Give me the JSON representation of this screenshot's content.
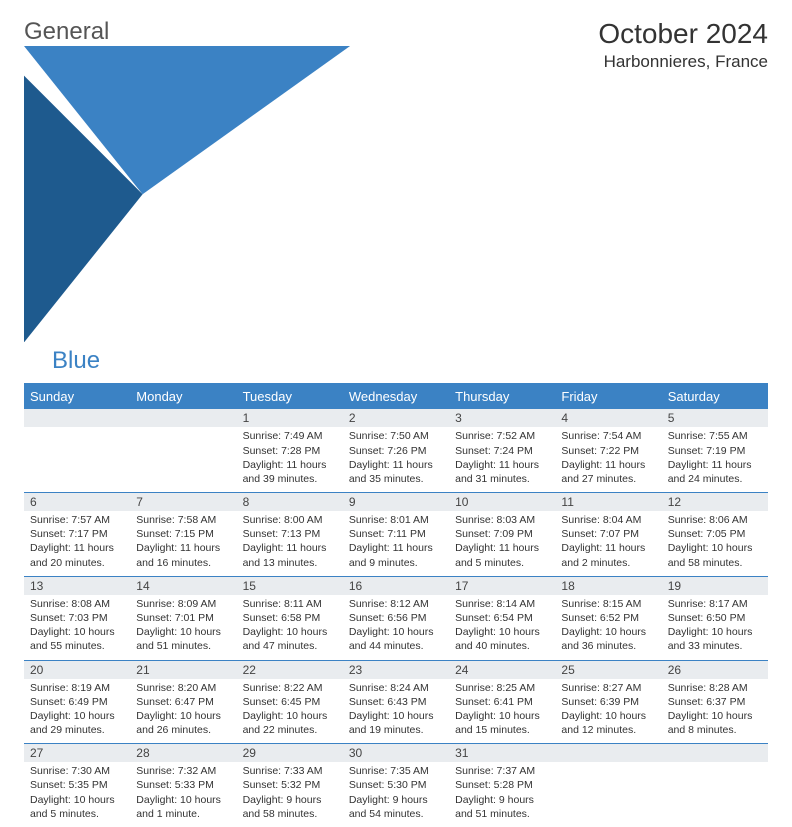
{
  "logo": {
    "text1": "General",
    "text2": "Blue"
  },
  "title": "October 2024",
  "location": "Harbonnieres, France",
  "weekdays": [
    "Sunday",
    "Monday",
    "Tuesday",
    "Wednesday",
    "Thursday",
    "Friday",
    "Saturday"
  ],
  "colors": {
    "accent": "#3b82c4",
    "header_bg": "#3b82c4",
    "header_text": "#ffffff",
    "daynum_bg": "#e9ecef",
    "text": "#333333",
    "background": "#ffffff"
  },
  "weeks": [
    [
      null,
      null,
      {
        "n": "1",
        "sr": "Sunrise: 7:49 AM",
        "ss": "Sunset: 7:28 PM",
        "dl": "Daylight: 11 hours and 39 minutes."
      },
      {
        "n": "2",
        "sr": "Sunrise: 7:50 AM",
        "ss": "Sunset: 7:26 PM",
        "dl": "Daylight: 11 hours and 35 minutes."
      },
      {
        "n": "3",
        "sr": "Sunrise: 7:52 AM",
        "ss": "Sunset: 7:24 PM",
        "dl": "Daylight: 11 hours and 31 minutes."
      },
      {
        "n": "4",
        "sr": "Sunrise: 7:54 AM",
        "ss": "Sunset: 7:22 PM",
        "dl": "Daylight: 11 hours and 27 minutes."
      },
      {
        "n": "5",
        "sr": "Sunrise: 7:55 AM",
        "ss": "Sunset: 7:19 PM",
        "dl": "Daylight: 11 hours and 24 minutes."
      }
    ],
    [
      {
        "n": "6",
        "sr": "Sunrise: 7:57 AM",
        "ss": "Sunset: 7:17 PM",
        "dl": "Daylight: 11 hours and 20 minutes."
      },
      {
        "n": "7",
        "sr": "Sunrise: 7:58 AM",
        "ss": "Sunset: 7:15 PM",
        "dl": "Daylight: 11 hours and 16 minutes."
      },
      {
        "n": "8",
        "sr": "Sunrise: 8:00 AM",
        "ss": "Sunset: 7:13 PM",
        "dl": "Daylight: 11 hours and 13 minutes."
      },
      {
        "n": "9",
        "sr": "Sunrise: 8:01 AM",
        "ss": "Sunset: 7:11 PM",
        "dl": "Daylight: 11 hours and 9 minutes."
      },
      {
        "n": "10",
        "sr": "Sunrise: 8:03 AM",
        "ss": "Sunset: 7:09 PM",
        "dl": "Daylight: 11 hours and 5 minutes."
      },
      {
        "n": "11",
        "sr": "Sunrise: 8:04 AM",
        "ss": "Sunset: 7:07 PM",
        "dl": "Daylight: 11 hours and 2 minutes."
      },
      {
        "n": "12",
        "sr": "Sunrise: 8:06 AM",
        "ss": "Sunset: 7:05 PM",
        "dl": "Daylight: 10 hours and 58 minutes."
      }
    ],
    [
      {
        "n": "13",
        "sr": "Sunrise: 8:08 AM",
        "ss": "Sunset: 7:03 PM",
        "dl": "Daylight: 10 hours and 55 minutes."
      },
      {
        "n": "14",
        "sr": "Sunrise: 8:09 AM",
        "ss": "Sunset: 7:01 PM",
        "dl": "Daylight: 10 hours and 51 minutes."
      },
      {
        "n": "15",
        "sr": "Sunrise: 8:11 AM",
        "ss": "Sunset: 6:58 PM",
        "dl": "Daylight: 10 hours and 47 minutes."
      },
      {
        "n": "16",
        "sr": "Sunrise: 8:12 AM",
        "ss": "Sunset: 6:56 PM",
        "dl": "Daylight: 10 hours and 44 minutes."
      },
      {
        "n": "17",
        "sr": "Sunrise: 8:14 AM",
        "ss": "Sunset: 6:54 PM",
        "dl": "Daylight: 10 hours and 40 minutes."
      },
      {
        "n": "18",
        "sr": "Sunrise: 8:15 AM",
        "ss": "Sunset: 6:52 PM",
        "dl": "Daylight: 10 hours and 36 minutes."
      },
      {
        "n": "19",
        "sr": "Sunrise: 8:17 AM",
        "ss": "Sunset: 6:50 PM",
        "dl": "Daylight: 10 hours and 33 minutes."
      }
    ],
    [
      {
        "n": "20",
        "sr": "Sunrise: 8:19 AM",
        "ss": "Sunset: 6:49 PM",
        "dl": "Daylight: 10 hours and 29 minutes."
      },
      {
        "n": "21",
        "sr": "Sunrise: 8:20 AM",
        "ss": "Sunset: 6:47 PM",
        "dl": "Daylight: 10 hours and 26 minutes."
      },
      {
        "n": "22",
        "sr": "Sunrise: 8:22 AM",
        "ss": "Sunset: 6:45 PM",
        "dl": "Daylight: 10 hours and 22 minutes."
      },
      {
        "n": "23",
        "sr": "Sunrise: 8:24 AM",
        "ss": "Sunset: 6:43 PM",
        "dl": "Daylight: 10 hours and 19 minutes."
      },
      {
        "n": "24",
        "sr": "Sunrise: 8:25 AM",
        "ss": "Sunset: 6:41 PM",
        "dl": "Daylight: 10 hours and 15 minutes."
      },
      {
        "n": "25",
        "sr": "Sunrise: 8:27 AM",
        "ss": "Sunset: 6:39 PM",
        "dl": "Daylight: 10 hours and 12 minutes."
      },
      {
        "n": "26",
        "sr": "Sunrise: 8:28 AM",
        "ss": "Sunset: 6:37 PM",
        "dl": "Daylight: 10 hours and 8 minutes."
      }
    ],
    [
      {
        "n": "27",
        "sr": "Sunrise: 7:30 AM",
        "ss": "Sunset: 5:35 PM",
        "dl": "Daylight: 10 hours and 5 minutes."
      },
      {
        "n": "28",
        "sr": "Sunrise: 7:32 AM",
        "ss": "Sunset: 5:33 PM",
        "dl": "Daylight: 10 hours and 1 minute."
      },
      {
        "n": "29",
        "sr": "Sunrise: 7:33 AM",
        "ss": "Sunset: 5:32 PM",
        "dl": "Daylight: 9 hours and 58 minutes."
      },
      {
        "n": "30",
        "sr": "Sunrise: 7:35 AM",
        "ss": "Sunset: 5:30 PM",
        "dl": "Daylight: 9 hours and 54 minutes."
      },
      {
        "n": "31",
        "sr": "Sunrise: 7:37 AM",
        "ss": "Sunset: 5:28 PM",
        "dl": "Daylight: 9 hours and 51 minutes."
      },
      null,
      null
    ]
  ]
}
